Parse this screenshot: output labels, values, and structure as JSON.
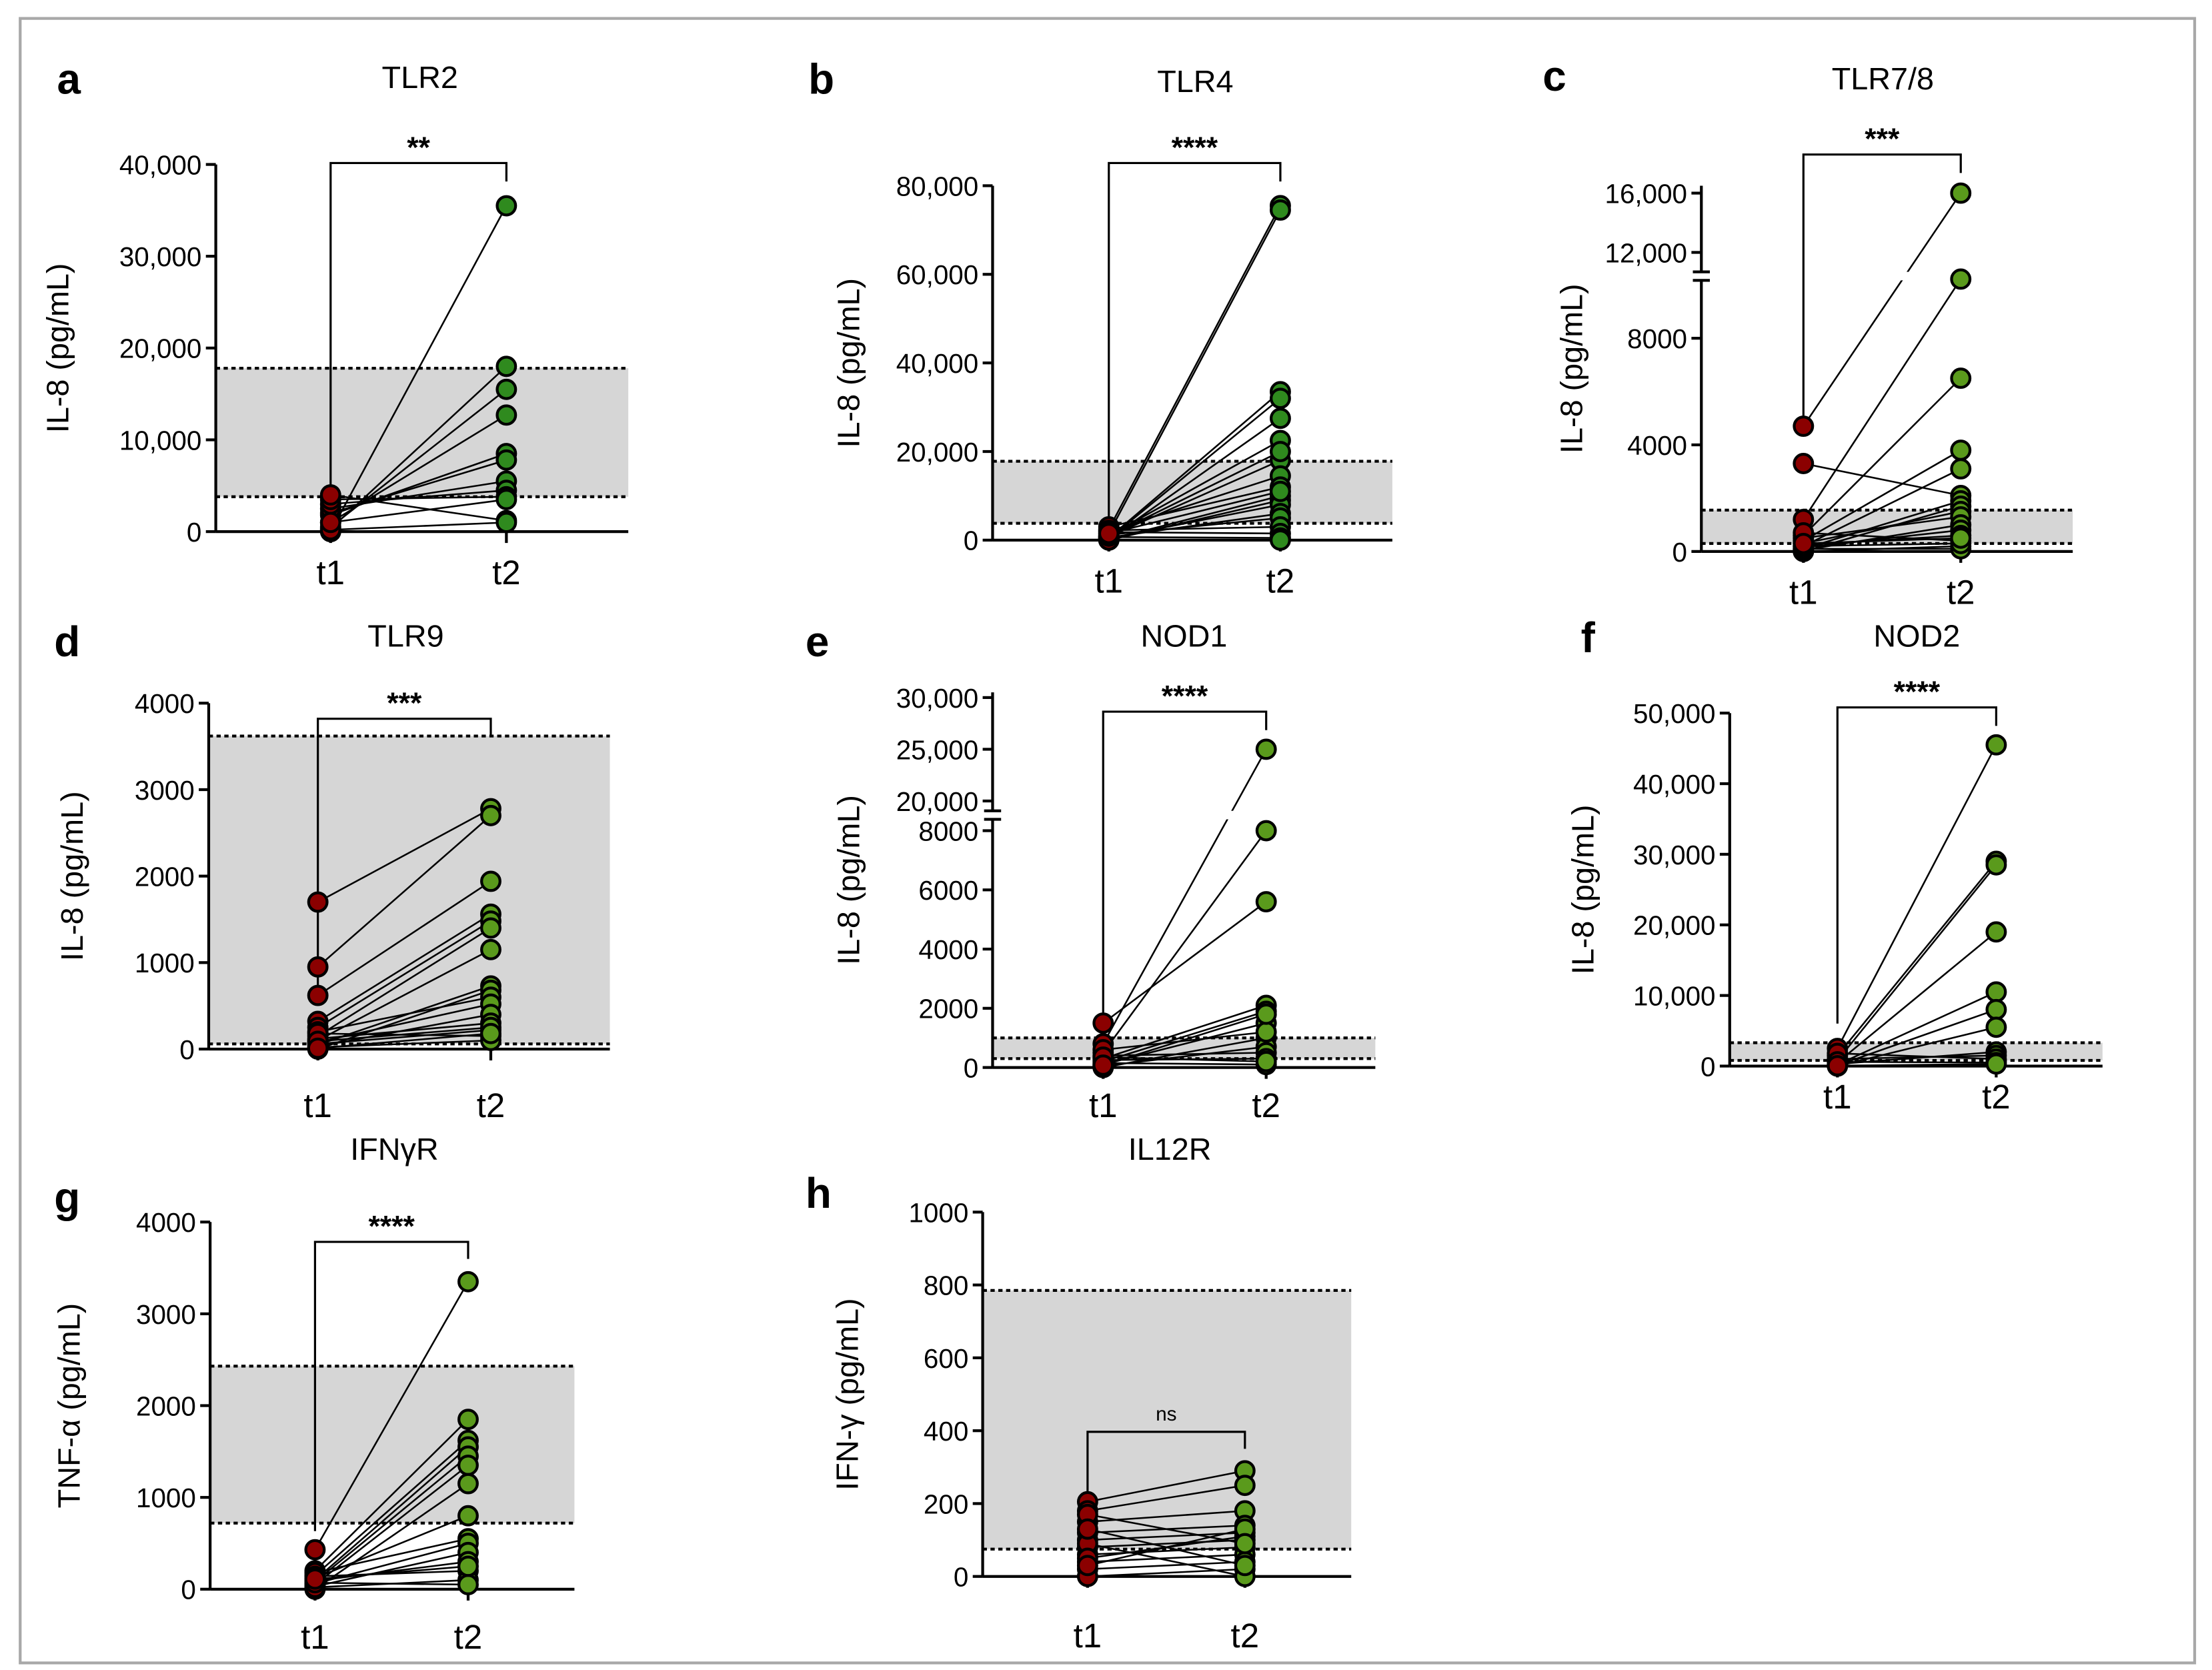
{
  "colors": {
    "t1_point": "#8b0000",
    "t2_point_dark": "#2f8a1e",
    "t2_point": "#5a9a1c",
    "band": "#d6d6d6",
    "frame": "#a8a8a8"
  },
  "chart_data": [
    {
      "id": "a",
      "type": "scatter",
      "panel_letter": "a",
      "title": "TLR2",
      "ylabel": "IL-8 (pg/mL)",
      "categories": [
        "t1",
        "t2"
      ],
      "yticks": [
        {
          "v": 0,
          "label": "0"
        },
        {
          "v": 10000,
          "label": "10,000"
        },
        {
          "v": 20000,
          "label": "20,000"
        },
        {
          "v": 30000,
          "label": "30,000"
        },
        {
          "v": 40000,
          "label": "40,000"
        }
      ],
      "segments": [
        [
          0,
          40000
        ]
      ],
      "band": [
        3800,
        17800
      ],
      "significance": "**",
      "dark_green": true,
      "t1": [
        0,
        300,
        500,
        1000,
        1800,
        2000,
        2500,
        3000,
        3500,
        4000,
        200,
        1000
      ],
      "t2": [
        35500,
        18000,
        15500,
        12700,
        8500,
        7800,
        5500,
        4500,
        3800,
        1200,
        1000,
        3500
      ]
    },
    {
      "id": "b",
      "type": "scatter",
      "panel_letter": "b",
      "title": "TLR4",
      "ylabel": "IL-8 (pg/mL)",
      "categories": [
        "t1",
        "t2"
      ],
      "yticks": [
        {
          "v": 0,
          "label": "0"
        },
        {
          "v": 20000,
          "label": "20,000"
        },
        {
          "v": 40000,
          "label": "40,000"
        },
        {
          "v": 60000,
          "label": "60,000"
        },
        {
          "v": 80000,
          "label": "80,000"
        }
      ],
      "segments": [
        [
          0,
          80000
        ]
      ],
      "band": [
        3800,
        17800
      ],
      "significance": "****",
      "dark_green": true,
      "t1": [
        2500,
        1500,
        500,
        300,
        200,
        1000,
        800,
        2000,
        3000,
        100,
        0,
        400,
        600,
        1200,
        2200,
        1800,
        700,
        50,
        900,
        1500
      ],
      "t2": [
        75500,
        74500,
        33500,
        32000,
        27500,
        22500,
        18000,
        14500,
        12000,
        10000,
        9000,
        8000,
        6000,
        5000,
        3000,
        1500,
        500,
        0,
        20000,
        11000
      ]
    },
    {
      "id": "c",
      "type": "scatter",
      "panel_letter": "c",
      "title": "TLR7/8",
      "ylabel": "IL-8 (pg/mL)",
      "categories": [
        "t1",
        "t2"
      ],
      "yticks": [
        {
          "v": 0,
          "label": "0"
        },
        {
          "v": 4000,
          "label": "4000"
        },
        {
          "v": 8000,
          "label": "8000"
        },
        {
          "v": 12000,
          "label": "12,000"
        },
        {
          "v": 16000,
          "label": "16,000"
        }
      ],
      "segments": [
        [
          0,
          10000
        ],
        [
          11000,
          16500
        ]
      ],
      "band": [
        300,
        1550
      ],
      "significance": "***",
      "dark_green": false,
      "t1": [
        4700,
        3300,
        1200,
        600,
        400,
        200,
        100,
        0,
        300,
        500,
        50,
        150,
        250,
        700,
        0,
        100,
        200,
        300
      ],
      "t2": [
        16000,
        2100,
        10200,
        6500,
        3800,
        3100,
        1900,
        1700,
        1500,
        1300,
        1000,
        800,
        600,
        400,
        200,
        100,
        300,
        500
      ]
    },
    {
      "id": "d",
      "type": "scatter",
      "panel_letter": "d",
      "title": "TLR9",
      "ylabel": "IL-8 (pg/mL)",
      "categories": [
        "t1",
        "t2"
      ],
      "yticks": [
        {
          "v": 0,
          "label": "0"
        },
        {
          "v": 1000,
          "label": "1000"
        },
        {
          "v": 2000,
          "label": "2000"
        },
        {
          "v": 3000,
          "label": "3000"
        },
        {
          "v": 4000,
          "label": "4000"
        }
      ],
      "segments": [
        [
          0,
          4000
        ]
      ],
      "band": [
        60,
        3620
      ],
      "significance": "***",
      "dark_green": false,
      "t1": [
        1700,
        950,
        620,
        320,
        250,
        150,
        100,
        50,
        0,
        200,
        80,
        30,
        120,
        60,
        180,
        20,
        90,
        10
      ],
      "t2": [
        2780,
        2700,
        1940,
        1560,
        1480,
        1400,
        1150,
        730,
        680,
        600,
        520,
        400,
        300,
        220,
        150,
        100,
        250,
        180
      ]
    },
    {
      "id": "e",
      "type": "scatter",
      "panel_letter": "e",
      "title": "NOD1",
      "ylabel": "IL-8 (pg/mL)",
      "categories": [
        "t1",
        "t2"
      ],
      "yticks": [
        {
          "v": 0,
          "label": "0"
        },
        {
          "v": 2000,
          "label": "2000"
        },
        {
          "v": 4000,
          "label": "4000"
        },
        {
          "v": 6000,
          "label": "6000"
        },
        {
          "v": 8000,
          "label": "8000"
        },
        {
          "v": 20000,
          "label": "20,000"
        },
        {
          "v": 25000,
          "label": "25,000"
        },
        {
          "v": 30000,
          "label": "30,000"
        }
      ],
      "segments": [
        [
          0,
          8400
        ],
        [
          19000,
          30500
        ]
      ],
      "band": [
        300,
        1000
      ],
      "significance": "****",
      "dark_green": false,
      "t1": [
        1500,
        800,
        500,
        300,
        200,
        100,
        0,
        50,
        400,
        250,
        150,
        600,
        350,
        80
      ],
      "t2": [
        5600,
        25000,
        8000,
        2100,
        1900,
        1500,
        1000,
        700,
        500,
        300,
        100,
        1200,
        200,
        1800
      ]
    },
    {
      "id": "f",
      "type": "scatter",
      "panel_letter": "f",
      "title": "NOD2",
      "ylabel": "IL-8 (pg/mL)",
      "categories": [
        "t1",
        "t2"
      ],
      "yticks": [
        {
          "v": 0,
          "label": "0"
        },
        {
          "v": 10000,
          "label": "10,000"
        },
        {
          "v": 20000,
          "label": "20,000"
        },
        {
          "v": 30000,
          "label": "30,000"
        },
        {
          "v": 40000,
          "label": "40,000"
        },
        {
          "v": 50000,
          "label": "50,000"
        }
      ],
      "segments": [
        [
          0,
          50000
        ]
      ],
      "band": [
        800,
        3300
      ],
      "significance": "****",
      "dark_green": false,
      "t1": [
        2500,
        1500,
        800,
        500,
        200,
        100,
        0,
        300,
        1000,
        1800,
        600,
        50
      ],
      "t2": [
        45500,
        29000,
        28500,
        19000,
        10500,
        8000,
        5500,
        2000,
        1500,
        1000,
        500,
        300
      ]
    },
    {
      "id": "g",
      "type": "scatter",
      "panel_letter": "g",
      "title": "IFNγR",
      "ylabel": "TNF-α (pg/mL)",
      "categories": [
        "t1",
        "t2"
      ],
      "yticks": [
        {
          "v": 0,
          "label": "0"
        },
        {
          "v": 1000,
          "label": "1000"
        },
        {
          "v": 2000,
          "label": "2000"
        },
        {
          "v": 3000,
          "label": "3000"
        },
        {
          "v": 4000,
          "label": "4000"
        }
      ],
      "segments": [
        [
          0,
          4000
        ]
      ],
      "band": [
        720,
        2430
      ],
      "significance": "****",
      "dark_green": false,
      "t1": [
        430,
        200,
        150,
        100,
        80,
        50,
        0,
        120,
        180,
        60,
        30,
        90,
        140,
        20,
        70,
        110
      ],
      "t2": [
        3350,
        1850,
        1620,
        1550,
        1450,
        1350,
        1150,
        800,
        550,
        500,
        400,
        300,
        200,
        100,
        50,
        250
      ]
    },
    {
      "id": "h",
      "type": "scatter",
      "panel_letter": "h",
      "title": "IL12R",
      "ylabel": "IFN-γ (pg/mL)",
      "categories": [
        "t1",
        "t2"
      ],
      "yticks": [
        {
          "v": 0,
          "label": "0"
        },
        {
          "v": 200,
          "label": "200"
        },
        {
          "v": 400,
          "label": "400"
        },
        {
          "v": 600,
          "label": "600"
        },
        {
          "v": 800,
          "label": "800"
        },
        {
          "v": 1000,
          "label": "1000"
        }
      ],
      "segments": [
        [
          0,
          1000
        ]
      ],
      "band": [
        75,
        785
      ],
      "significance": "ns",
      "dark_green": false,
      "t1": [
        205,
        180,
        150,
        120,
        100,
        80,
        60,
        40,
        20,
        0,
        90,
        50,
        30,
        170,
        130
      ],
      "t2": [
        290,
        250,
        180,
        140,
        120,
        100,
        80,
        60,
        40,
        20,
        0,
        110,
        130,
        90,
        30
      ]
    }
  ]
}
